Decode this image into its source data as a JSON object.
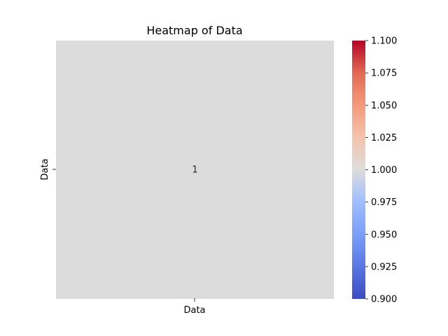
{
  "chart_data": {
    "type": "heatmap",
    "title": "Heatmap of Data",
    "x_categories": [
      "Data"
    ],
    "y_categories": [
      "Data"
    ],
    "values": [
      [
        1
      ]
    ],
    "annotations": [
      [
        "1"
      ]
    ],
    "colormap": "coolwarm",
    "cell_color": "#dddcdc",
    "colorbar": {
      "vmin": 0.9,
      "vmax": 1.1,
      "ticks": [
        "0.900",
        "0.925",
        "0.950",
        "0.975",
        "1.000",
        "1.025",
        "1.050",
        "1.075",
        "1.100"
      ],
      "tick_values": [
        0.9,
        0.925,
        0.95,
        0.975,
        1.0,
        1.025,
        1.05,
        1.075,
        1.1
      ],
      "stops": [
        {
          "offset": 0,
          "color": "#3b4cc0"
        },
        {
          "offset": 0.125,
          "color": "#5977e3"
        },
        {
          "offset": 0.25,
          "color": "#7b9ff9"
        },
        {
          "offset": 0.375,
          "color": "#9ebeff"
        },
        {
          "offset": 0.5,
          "color": "#dddcdc"
        },
        {
          "offset": 0.625,
          "color": "#f5c4ac"
        },
        {
          "offset": 0.75,
          "color": "#f49a7b"
        },
        {
          "offset": 0.875,
          "color": "#e36a53"
        },
        {
          "offset": 1,
          "color": "#b40426"
        }
      ]
    }
  }
}
